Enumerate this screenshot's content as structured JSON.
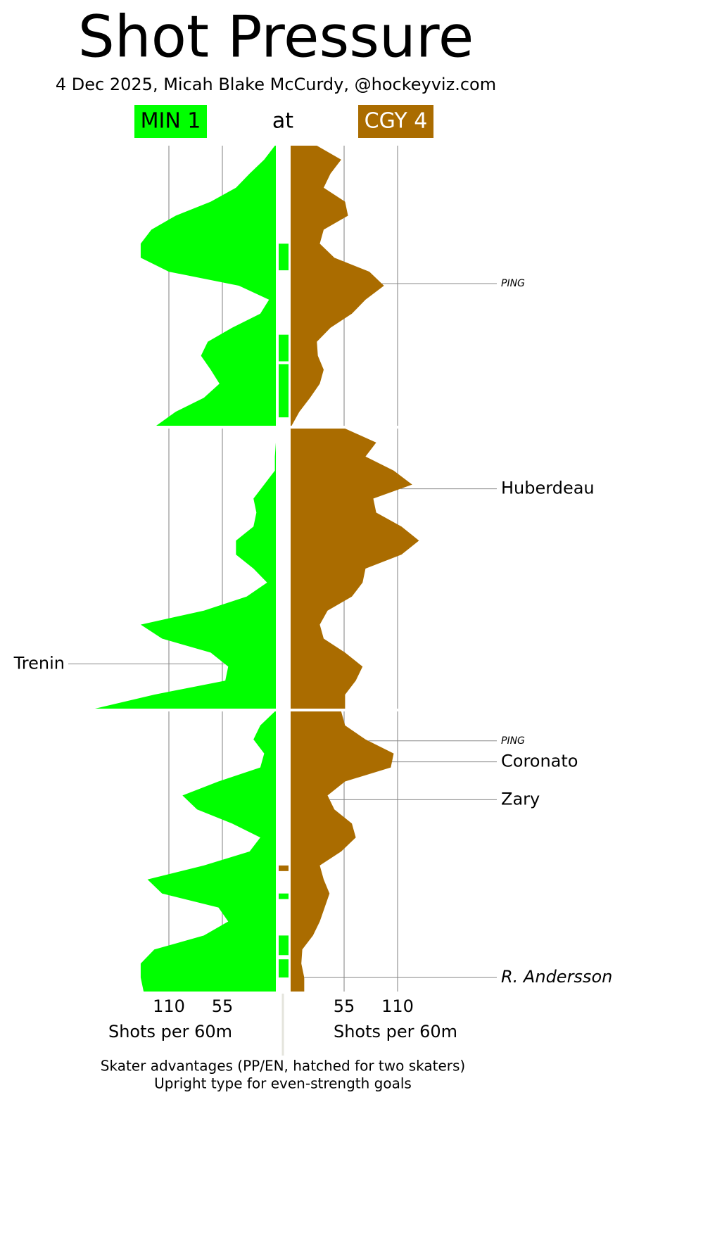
{
  "chart_data": {
    "type": "shot_pressure",
    "title": "Shot Pressure",
    "subtitle": "4 Dec 2025, Micah Blake McCurdy, @hockeyviz.com",
    "connector": "at",
    "value_axis_label": "Shots per 60m",
    "vlim": [
      0,
      110
    ],
    "vticks": [
      55,
      110
    ],
    "tlim": [
      0,
      20
    ],
    "x": [
      0,
      1,
      2,
      3,
      4,
      5,
      6,
      7,
      8,
      9,
      10,
      11,
      12,
      13,
      14,
      15,
      16,
      17,
      18,
      19,
      20
    ],
    "teams": [
      {
        "label": "MIN 1",
        "color": "#00ff00",
        "text_color": "#000000",
        "side": "left",
        "periods": [
          [
            1,
            12,
            27,
            41,
            67,
            103,
            128,
            139,
            139,
            110,
            38,
            7,
            16,
            45,
            70,
            77,
            67,
            58,
            74,
            103,
            123
          ],
          [
            0,
            0,
            1,
            1,
            12,
            23,
            20,
            23,
            41,
            41,
            23,
            9,
            30,
            74,
            139,
            117,
            67,
            49,
            52,
            125,
            186
          ],
          [
            1,
            16,
            23,
            12,
            16,
            59,
            96,
            81,
            45,
            16,
            27,
            74,
            132,
            117,
            59,
            49,
            74,
            125,
            139,
            139,
            136
          ]
        ]
      },
      {
        "label": "CGY 4",
        "color": "#aa6c00",
        "text_color": "#ffffff",
        "side": "right",
        "periods": [
          [
            27,
            52,
            41,
            34,
            56,
            59,
            34,
            30,
            45,
            81,
            96,
            77,
            63,
            41,
            27,
            28,
            34,
            30,
            20,
            9,
            1
          ],
          [
            56,
            88,
            77,
            106,
            125,
            85,
            88,
            114,
            132,
            114,
            77,
            74,
            63,
            38,
            30,
            34,
            56,
            74,
            67,
            56,
            56
          ],
          [
            52,
            56,
            77,
            106,
            103,
            56,
            38,
            45,
            63,
            67,
            52,
            30,
            34,
            40,
            35,
            30,
            23,
            12,
            11,
            14,
            14
          ]
        ]
      }
    ],
    "advantages": [
      {
        "team": 0,
        "start": 7.0,
        "end": 8.9
      },
      {
        "team": 0,
        "start": 13.5,
        "end": 15.4
      },
      {
        "team": 0,
        "start": 15.6,
        "end": 19.4
      },
      {
        "team": 1,
        "start": 51.0,
        "end": 51.4
      },
      {
        "team": 0,
        "start": 53.0,
        "end": 53.4
      },
      {
        "team": 0,
        "start": 56.0,
        "end": 57.4
      },
      {
        "team": 0,
        "start": 57.7,
        "end": 59.0
      }
    ],
    "goals": [
      {
        "label": "PING",
        "team": 1,
        "time": 9.85,
        "style": "small-italic"
      },
      {
        "label": "Huberdeau",
        "team": 1,
        "time": 24.3,
        "style": "upright"
      },
      {
        "label": "Trenin",
        "team": 0,
        "time": 36.8,
        "style": "upright"
      },
      {
        "label": "PING",
        "team": 1,
        "time": 42.1,
        "style": "small-italic"
      },
      {
        "label": "Coronato",
        "team": 1,
        "time": 43.6,
        "style": "upright"
      },
      {
        "label": "Zary",
        "team": 1,
        "time": 46.3,
        "style": "upright"
      },
      {
        "label": "R. Andersson",
        "team": 1,
        "time": 59.0,
        "style": "italic"
      }
    ],
    "notes": [
      "Skater advantages (PP/EN, hatched for two skaters)",
      "Upright type for even-strength goals"
    ]
  }
}
